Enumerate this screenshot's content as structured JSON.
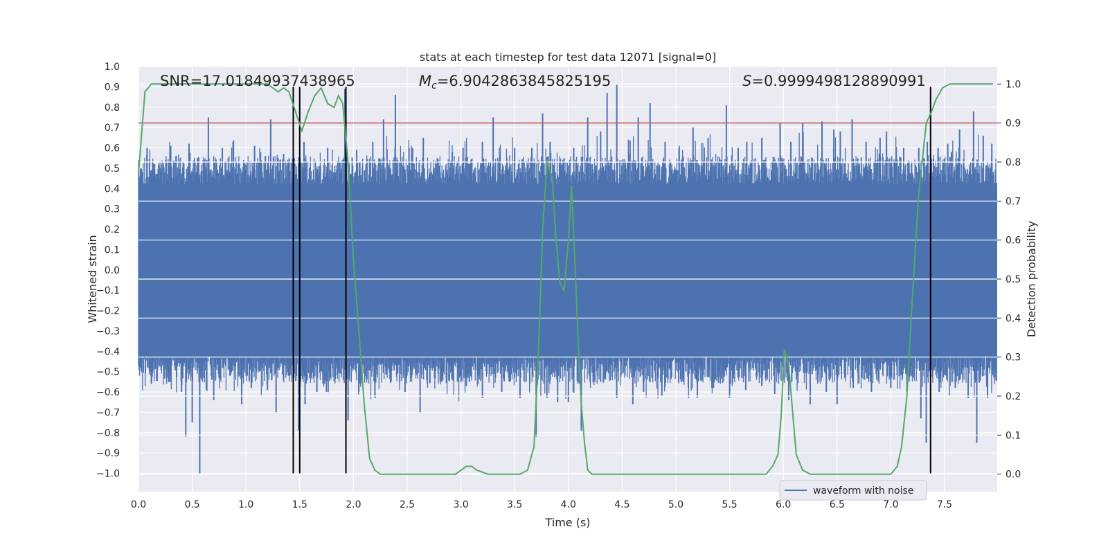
{
  "chart_data": {
    "type": "line",
    "title": "stats at each timestep for test data 12071 [signal=0]",
    "xlabel": "Time (s)",
    "ylabel": "Whitened strain",
    "ylabel_right": "Detection probability",
    "xlim": [
      0.0,
      7.99
    ],
    "ylim": [
      -1.09,
      1.0
    ],
    "ylim_right": [
      -0.045,
      1.045
    ],
    "x_ticks": [
      "0.0",
      "0.5",
      "1.0",
      "1.5",
      "2.0",
      "2.5",
      "3.0",
      "3.5",
      "4.0",
      "4.5",
      "5.0",
      "5.5",
      "6.0",
      "6.5",
      "7.0",
      "7.5"
    ],
    "y_ticks": [
      "1.0",
      "0.9",
      "0.8",
      "0.7",
      "0.6",
      "0.5",
      "0.4",
      "0.3",
      "0.2",
      "0.1",
      "0.0",
      "−0.1",
      "−0.2",
      "−0.3",
      "−0.4",
      "−0.5",
      "−0.6",
      "−0.7",
      "−0.8",
      "−0.9",
      "−1.0"
    ],
    "y_right_ticks": [
      "1.0",
      "0.9",
      "0.8",
      "0.7",
      "0.6",
      "0.5",
      "0.4",
      "0.3",
      "0.2",
      "0.1",
      "0.0"
    ],
    "annotations": {
      "snr": "SNR=17.01849937438965",
      "mc_symbol": "M",
      "mc_sub": "c",
      "mc_value": "=6.9042863845825195",
      "s_symbol": "S",
      "s_value": "=0.9999498128890991"
    },
    "legend": {
      "label": "waveform with noise",
      "location": "lower-right"
    },
    "threshold": {
      "value": 0.9,
      "axis": "right",
      "color": "#c44e52"
    },
    "vlines": [
      1.44,
      1.5,
      1.93,
      7.37
    ],
    "vline_range": [
      -1.0,
      0.9
    ],
    "waveform": {
      "name": "waveform with noise",
      "color": "#4c72b0",
      "core_range": [
        -0.38,
        0.36
      ],
      "peaks_max": [
        [
          0.02,
          0.49
        ],
        [
          0.08,
          0.6
        ],
        [
          0.15,
          0.52
        ],
        [
          0.3,
          0.61
        ],
        [
          0.35,
          0.56
        ],
        [
          0.47,
          0.62
        ],
        [
          0.55,
          0.55
        ],
        [
          0.65,
          0.75
        ],
        [
          0.78,
          0.6
        ],
        [
          0.88,
          0.63
        ],
        [
          0.98,
          0.51
        ],
        [
          1.08,
          0.61
        ],
        [
          1.18,
          0.56
        ],
        [
          1.23,
          0.74
        ],
        [
          1.35,
          0.57
        ],
        [
          1.45,
          0.55
        ],
        [
          1.54,
          0.63
        ],
        [
          1.68,
          0.51
        ],
        [
          1.76,
          0.6
        ],
        [
          1.92,
          0.89
        ],
        [
          2.03,
          0.59
        ],
        [
          2.18,
          0.63
        ],
        [
          2.28,
          0.74
        ],
        [
          2.39,
          0.86
        ],
        [
          2.55,
          0.6
        ],
        [
          2.65,
          0.65
        ],
        [
          2.78,
          0.55
        ],
        [
          2.92,
          0.58
        ],
        [
          3.02,
          0.6
        ],
        [
          3.2,
          0.63
        ],
        [
          3.3,
          0.75
        ],
        [
          3.5,
          0.6
        ],
        [
          3.66,
          0.6
        ],
        [
          3.76,
          0.77
        ],
        [
          3.83,
          0.63
        ],
        [
          3.96,
          0.55
        ],
        [
          4.05,
          0.6
        ],
        [
          4.18,
          0.75
        ],
        [
          4.3,
          0.68
        ],
        [
          4.36,
          0.87
        ],
        [
          4.45,
          0.91
        ],
        [
          4.56,
          0.64
        ],
        [
          4.65,
          0.75
        ],
        [
          4.76,
          0.82
        ],
        [
          4.9,
          0.63
        ],
        [
          5.03,
          0.6
        ],
        [
          5.16,
          0.7
        ],
        [
          5.3,
          0.65
        ],
        [
          5.47,
          0.81
        ],
        [
          5.58,
          0.6
        ],
        [
          5.66,
          0.63
        ],
        [
          5.8,
          0.65
        ],
        [
          5.97,
          0.72
        ],
        [
          6.07,
          0.63
        ],
        [
          6.18,
          0.72
        ],
        [
          6.36,
          0.73
        ],
        [
          6.47,
          0.69
        ],
        [
          6.53,
          0.68
        ],
        [
          6.64,
          0.74
        ],
        [
          6.77,
          0.63
        ],
        [
          6.9,
          0.65
        ],
        [
          6.96,
          0.68
        ],
        [
          7.12,
          0.6
        ],
        [
          7.26,
          0.6
        ],
        [
          7.34,
          0.63
        ],
        [
          7.44,
          0.6
        ],
        [
          7.53,
          0.62
        ],
        [
          7.64,
          0.69
        ],
        [
          7.77,
          0.78
        ],
        [
          7.86,
          0.66
        ],
        [
          7.94,
          0.62
        ]
      ],
      "peaks_min": [
        [
          0.02,
          -0.48
        ],
        [
          0.12,
          -0.56
        ],
        [
          0.28,
          -0.55
        ],
        [
          0.4,
          -0.6
        ],
        [
          0.44,
          -0.82
        ],
        [
          0.5,
          -0.75
        ],
        [
          0.57,
          -1.0
        ],
        [
          0.7,
          -0.64
        ],
        [
          0.85,
          -0.52
        ],
        [
          0.96,
          -0.66
        ],
        [
          1.05,
          -0.58
        ],
        [
          1.2,
          -0.59
        ],
        [
          1.28,
          -0.7
        ],
        [
          1.4,
          -0.52
        ],
        [
          1.49,
          -0.79
        ],
        [
          1.55,
          -0.66
        ],
        [
          1.66,
          -0.6
        ],
        [
          1.75,
          -0.6
        ],
        [
          1.95,
          -0.74
        ],
        [
          2.05,
          -0.6
        ],
        [
          2.2,
          -0.63
        ],
        [
          2.35,
          -0.55
        ],
        [
          2.48,
          -0.6
        ],
        [
          2.62,
          -0.7
        ],
        [
          2.82,
          -0.55
        ],
        [
          3.05,
          -0.57
        ],
        [
          3.2,
          -0.63
        ],
        [
          3.38,
          -0.6
        ],
        [
          3.55,
          -0.63
        ],
        [
          3.7,
          -0.82
        ],
        [
          3.8,
          -0.63
        ],
        [
          3.9,
          -0.65
        ],
        [
          4.0,
          -0.65
        ],
        [
          4.12,
          -0.79
        ],
        [
          4.3,
          -0.55
        ],
        [
          4.45,
          -0.63
        ],
        [
          4.6,
          -0.66
        ],
        [
          4.7,
          -0.6
        ],
        [
          4.87,
          -0.62
        ],
        [
          5.05,
          -0.55
        ],
        [
          5.2,
          -0.63
        ],
        [
          5.35,
          -0.58
        ],
        [
          5.5,
          -0.63
        ],
        [
          5.65,
          -0.59
        ],
        [
          5.8,
          -0.57
        ],
        [
          5.92,
          -0.61
        ],
        [
          6.05,
          -0.64
        ],
        [
          6.25,
          -0.66
        ],
        [
          6.4,
          -0.6
        ],
        [
          6.5,
          -0.66
        ],
        [
          6.65,
          -0.58
        ],
        [
          6.82,
          -0.6
        ],
        [
          7.0,
          -0.58
        ],
        [
          7.15,
          -0.6
        ],
        [
          7.28,
          -0.73
        ],
        [
          7.33,
          -0.85
        ],
        [
          7.45,
          -0.6
        ],
        [
          7.6,
          -0.58
        ],
        [
          7.72,
          -0.63
        ],
        [
          7.8,
          -0.85
        ],
        [
          7.9,
          -0.63
        ]
      ]
    },
    "detection": {
      "name": "Detection probability",
      "color": "#55a868",
      "x": [
        0.0,
        0.06,
        0.12,
        0.2,
        0.3,
        0.4,
        0.5,
        0.6,
        0.7,
        0.8,
        0.9,
        1.0,
        1.1,
        1.2,
        1.25,
        1.3,
        1.35,
        1.4,
        1.46,
        1.52,
        1.58,
        1.64,
        1.7,
        1.76,
        1.82,
        1.86,
        1.9,
        1.95,
        2.0,
        2.05,
        2.1,
        2.15,
        2.2,
        2.25,
        2.32,
        2.4,
        2.5,
        2.6,
        2.7,
        2.8,
        2.9,
        2.95,
        3.0,
        3.05,
        3.1,
        3.15,
        3.25,
        3.35,
        3.45,
        3.55,
        3.62,
        3.68,
        3.72,
        3.76,
        3.8,
        3.85,
        3.88,
        3.92,
        3.96,
        4.0,
        4.03,
        4.06,
        4.09,
        4.12,
        4.15,
        4.18,
        4.22,
        4.3,
        4.4,
        4.5,
        4.6,
        4.7,
        4.8,
        4.9,
        5.0,
        5.1,
        5.2,
        5.3,
        5.4,
        5.5,
        5.6,
        5.7,
        5.78,
        5.84,
        5.9,
        5.95,
        5.98,
        6.01,
        6.05,
        6.08,
        6.12,
        6.18,
        6.25,
        6.35,
        6.45,
        6.5,
        6.58,
        6.65,
        6.72,
        6.8,
        6.9,
        7.0,
        7.06,
        7.1,
        7.15,
        7.2,
        7.26,
        7.33,
        7.38,
        7.42,
        7.48,
        7.55,
        7.6,
        7.66,
        7.72,
        7.8,
        7.88,
        7.95
      ],
      "y": [
        0.77,
        0.98,
        1.0,
        1.0,
        1.0,
        1.0,
        1.0,
        1.0,
        1.0,
        1.0,
        1.0,
        1.0,
        1.0,
        1.0,
        0.99,
        0.98,
        0.99,
        0.98,
        0.93,
        0.88,
        0.93,
        0.97,
        0.99,
        0.95,
        0.94,
        0.97,
        0.95,
        0.8,
        0.55,
        0.37,
        0.18,
        0.04,
        0.01,
        0.0,
        0.0,
        0.0,
        0.0,
        0.0,
        0.0,
        0.0,
        0.0,
        0.0,
        0.01,
        0.02,
        0.02,
        0.01,
        0.0,
        0.0,
        0.0,
        0.0,
        0.01,
        0.07,
        0.3,
        0.62,
        0.8,
        0.76,
        0.62,
        0.49,
        0.47,
        0.6,
        0.74,
        0.55,
        0.35,
        0.18,
        0.08,
        0.01,
        0.0,
        0.0,
        0.0,
        0.0,
        0.0,
        0.0,
        0.0,
        0.0,
        0.0,
        0.0,
        0.0,
        0.0,
        0.0,
        0.0,
        0.0,
        0.0,
        0.0,
        0.0,
        0.02,
        0.05,
        0.15,
        0.32,
        0.28,
        0.18,
        0.05,
        0.01,
        0.0,
        0.0,
        0.0,
        0.0,
        0.0,
        0.0,
        0.0,
        0.0,
        0.0,
        0.0,
        0.02,
        0.07,
        0.2,
        0.45,
        0.72,
        0.9,
        0.93,
        0.96,
        0.99,
        1.0,
        1.0,
        1.0,
        1.0,
        1.0,
        1.0,
        1.0
      ]
    }
  }
}
